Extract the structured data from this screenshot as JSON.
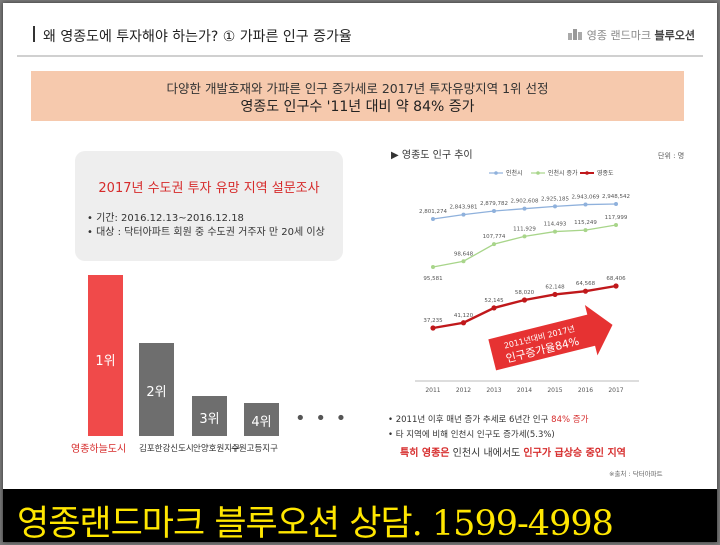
{
  "header": {
    "title": "왜 영종도에 투자해야 하는가? ① 가파른 인구 증가율",
    "brand_light": "영종 랜드마크",
    "brand_bold": "블루오션"
  },
  "headline": {
    "line1": "다양한 개발호재와 가파른 인구 증가세로 2017년 투자유망지역 1위 선정",
    "line2": "영종도 인구수 '11년 대비 약 84% 증가"
  },
  "survey": {
    "title": "2017년 수도권 투자 유망 지역 설문조사",
    "period": "• 기간: 2016.12.13~2016.12.18",
    "target": "• 대상 : 닥터아파트 회원 중 수도권 거주자 만 20세 이상"
  },
  "ranking": [
    {
      "rank": "1위",
      "name": "영종하늘도시",
      "color": "#f04a4a",
      "name_color": "#d62b2b"
    },
    {
      "rank": "2위",
      "name": "김포한강신도시",
      "color": "#6e6e6e",
      "name_color": "#333333"
    },
    {
      "rank": "3위",
      "name": "안양호원지구",
      "color": "#6e6e6e",
      "name_color": "#333333"
    },
    {
      "rank": "4위",
      "name": "수원고등지구",
      "color": "#6e6e6e",
      "name_color": "#333333"
    }
  ],
  "more_dots": "• • •",
  "chart_title": "▶ 영종도 인구 추이",
  "chart_unit": "단위 : 명",
  "chart_data": {
    "type": "line",
    "x": [
      "2011",
      "2012",
      "2013",
      "2014",
      "2015",
      "2016",
      "2017"
    ],
    "series": [
      {
        "name": "인천시",
        "color": "#8fb1dc",
        "values": [
          2801274,
          2843981,
          2879782,
          2902608,
          2925185,
          2943069,
          2948542
        ],
        "labels": [
          "2,801,274",
          "2,843,981",
          "2,879,782",
          "2,902,608",
          "2,925,185",
          "2,943,069",
          "2,948,542"
        ]
      },
      {
        "name": "인천시 증가",
        "color": "#a8d58a",
        "values": [
          95581,
          98648,
          107774,
          111929,
          114493,
          115249,
          117999
        ],
        "labels": [
          "95,581",
          "98,648",
          "107,774",
          "111,929",
          "114,493",
          "115,249",
          "117,999"
        ]
      },
      {
        "name": "영종도",
        "color": "#c0181b",
        "values": [
          37235,
          41120,
          52145,
          58020,
          62148,
          64568,
          68406
        ],
        "labels": [
          "37,235",
          "41,120",
          "52,145",
          "58,020",
          "62,148",
          "64,568",
          "68,406"
        ]
      }
    ],
    "callout_line1": "2011년대비 2017년",
    "callout_line2": "인구증가율84%"
  },
  "notes": {
    "n1_a": "• 2011년 이후 매년 증가 추세로 6년간 인구 ",
    "n1_b": "84% 증가",
    "n2": "• 타 지역에 비해 인천시 인구도 증가세(5.3%)",
    "n3_a": "특히 영종은",
    "n3_b": " 인천시 내에서도 ",
    "n3_c": "인구가 급상승 중인 지역",
    "source": "※출처 : 닥터아파트"
  },
  "footer": {
    "text": "영종랜드마크 블루오션 상담.   1599-4998"
  }
}
